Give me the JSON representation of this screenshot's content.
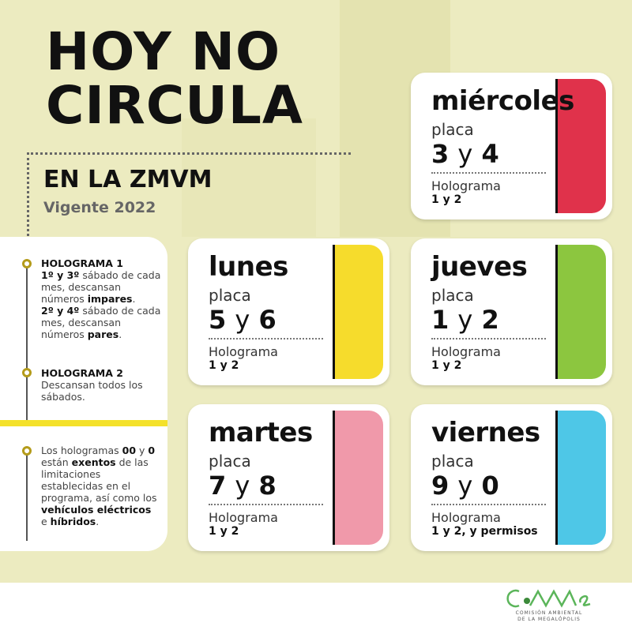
{
  "title": {
    "line1": "HOY NO",
    "line2": "CIRCULA"
  },
  "zone": "EN LA ZMVM",
  "valid": "Vigente 2022",
  "notes": {
    "h1_title": "HOLOGRAMA 1",
    "h1_a1": "1º y 3º",
    " h1_a2": "",
    "h1_text1": " sábado de cada mes, descansan números ",
    "h1_b1": "impares",
    "h1_a3": "2º y 4º",
    "h1_text2": " sábado de cada mes, descansan números ",
    "h1_b2": "pares",
    "h2_title": "HOLOGRAMA 2",
    "h2_text": "Descansan todos los sábados.",
    "ex_t1": "Los hologramas ",
    "ex_b1": "00",
    "ex_t2": " y ",
    "ex_b2": "0",
    "ex_t3": " están ",
    "ex_b3": "exentos",
    "ex_t4": " de las limitaciones establecidas en el programa, así como los ",
    "ex_b4": "vehículos eléctricos",
    "ex_t5": " e ",
    "ex_b5": "híbridos"
  },
  "cards": [
    {
      "day": "miércoles",
      "placa": "placa",
      "n1": "3",
      "y": "y",
      "n2": "4",
      "holo": "Holograma",
      "holo_val": "1 y 2",
      "color": "#e0324b"
    },
    {
      "day": "lunes",
      "placa": "placa",
      "n1": "5",
      "y": "y",
      "n2": "6",
      "holo": "Holograma",
      "holo_val": "1 y 2",
      "color": "#f6dc2c"
    },
    {
      "day": "jueves",
      "placa": "placa",
      "n1": "1",
      "y": "y",
      "n2": "2",
      "holo": "Holograma",
      "holo_val": "1 y 2",
      "color": "#8cc63f"
    },
    {
      "day": "martes",
      "placa": "placa",
      "n1": "7",
      "y": "y",
      "n2": "8",
      "holo": "Holograma",
      "holo_val": "1 y 2",
      "color": "#f099aa"
    },
    {
      "day": "viernes",
      "placa": "placa",
      "n1": "9",
      "y": "y",
      "n2": "0",
      "holo": "Holograma",
      "holo_val": "1 y 2, y permisos",
      "color": "#4ec7e7"
    }
  ],
  "logo": {
    "name": "CAMe",
    "sub1": "COMISIÓN AMBIENTAL",
    "sub2": "DE LA MEGALÓPOLIS",
    "color": "#5bb55a"
  }
}
